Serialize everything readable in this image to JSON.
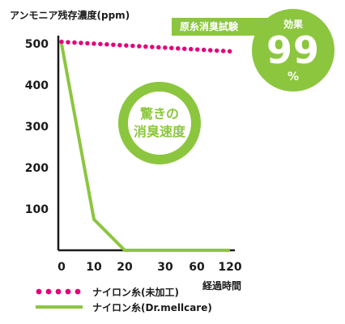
{
  "badge": {
    "banner_text": "原糸消臭試験",
    "effect_label": "効果",
    "effect_value": "99",
    "effect_unit": "%"
  },
  "callout": {
    "line1": "驚きの",
    "line2": "消臭速度"
  },
  "chart_data": {
    "type": "line",
    "title": "",
    "ylabel": "アンモニア残存濃度(ppm)",
    "xlabel": "経過時間",
    "categories": [
      "0",
      "10",
      "20",
      "30",
      "60",
      "120"
    ],
    "ylim": [
      0,
      520
    ],
    "yticks": [
      100,
      200,
      300,
      400,
      500
    ],
    "grid": false,
    "legend_position": "bottom-left",
    "series": [
      {
        "name": "ナイロン糸(未加工)",
        "color": "#e2007a",
        "style": "dotted",
        "points": [
          [
            0,
            505
          ],
          [
            120,
            482
          ]
        ]
      },
      {
        "name": "ナイロン糸(Dr.mellcare)",
        "color": "#8cc63f",
        "style": "solid",
        "points": [
          [
            0,
            500
          ],
          [
            10,
            75
          ],
          [
            20,
            0
          ],
          [
            120,
            0
          ]
        ]
      }
    ]
  }
}
